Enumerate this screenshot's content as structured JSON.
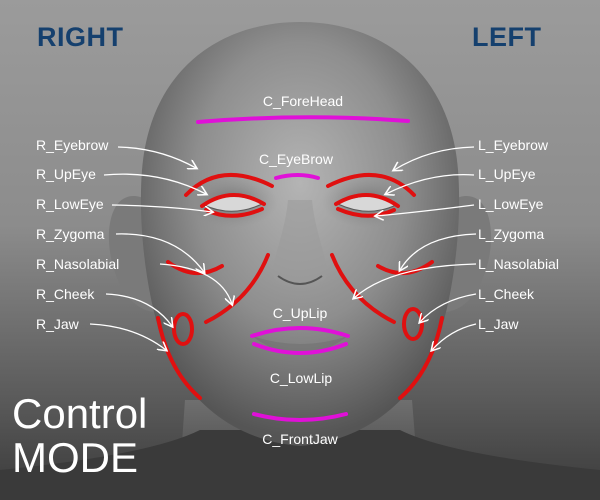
{
  "header": {
    "right_label": "RIGHT",
    "left_label": "LEFT"
  },
  "mode_title": {
    "line1": "Control",
    "line2": "MODE"
  },
  "colors": {
    "side_control": "#e01010",
    "center_control": "#e010d8",
    "side_text": "#15406e",
    "label_text": "#ffffff"
  },
  "right_controls": [
    "R_Eyebrow",
    "R_UpEye",
    "R_LowEye",
    "R_Zygoma",
    "R_Nasolabial",
    "R_Cheek",
    "R_Jaw"
  ],
  "left_controls": [
    "L_Eyebrow",
    "L_UpEye",
    "L_LowEye",
    "L_Zygoma",
    "L_Nasolabial",
    "L_Cheek",
    "L_Jaw"
  ],
  "center_controls": {
    "forehead": "C_ForeHead",
    "eyebrow": "C_EyeBrow",
    "uplip": "C_UpLip",
    "lowlip": "C_LowLip",
    "frontjaw": "C_FrontJaw"
  }
}
